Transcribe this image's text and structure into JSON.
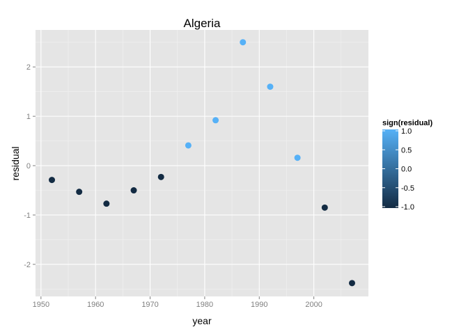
{
  "chart_data": {
    "type": "scatter",
    "title": "Algeria",
    "xlabel": "year",
    "ylabel": "residual",
    "xlim": [
      1949,
      2010
    ],
    "ylim": [
      -2.65,
      2.75
    ],
    "x_ticks": [
      1950,
      1960,
      1970,
      1980,
      1990,
      2000
    ],
    "y_ticks": [
      -2,
      -1,
      0,
      1,
      2
    ],
    "grid": true,
    "legend": {
      "title": "sign(residual)",
      "position": "right",
      "labels": [
        "1.0",
        "0.5",
        "0.0",
        "-0.5",
        "-1.0"
      ],
      "values": [
        1.0,
        0.5,
        0.0,
        -0.5,
        -1.0
      ],
      "low_color": "#132B43",
      "high_color": "#56B1F7"
    },
    "points": [
      {
        "x": 1952,
        "y": -0.29,
        "color_value": -1
      },
      {
        "x": 1957,
        "y": -0.53,
        "color_value": -1
      },
      {
        "x": 1962,
        "y": -0.77,
        "color_value": -1
      },
      {
        "x": 1967,
        "y": -0.5,
        "color_value": -1
      },
      {
        "x": 1972,
        "y": -0.23,
        "color_value": -1
      },
      {
        "x": 1977,
        "y": 0.41,
        "color_value": 1
      },
      {
        "x": 1982,
        "y": 0.92,
        "color_value": 1
      },
      {
        "x": 1987,
        "y": 2.5,
        "color_value": 1
      },
      {
        "x": 1992,
        "y": 1.6,
        "color_value": 1
      },
      {
        "x": 1997,
        "y": 0.16,
        "color_value": 1
      },
      {
        "x": 2002,
        "y": -0.85,
        "color_value": -1
      },
      {
        "x": 2007,
        "y": -2.38,
        "color_value": -1
      }
    ]
  },
  "colors": {
    "panel_background": "#E5E5E5",
    "grid_major": "#FFFFFF",
    "grid_minor": "#F2F2F2",
    "tick_label": "#7F7F7F"
  }
}
